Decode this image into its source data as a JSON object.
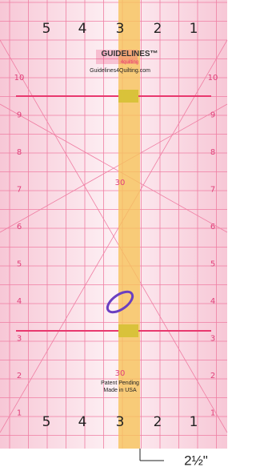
{
  "top_scale": [
    "5",
    "4",
    "3",
    "2",
    "1"
  ],
  "logo": {
    "brand": "GUIDELINES™",
    "sub": "4quilting",
    "url": "Guidelines4Quilting.com"
  },
  "side_scale_left": [
    "10",
    "9",
    "8",
    "7",
    "6",
    "5",
    "4",
    "3",
    "2",
    "1"
  ],
  "side_scale_right": [
    "10",
    "9",
    "8",
    "7",
    "6",
    "5",
    "4",
    "3",
    "2",
    "1"
  ],
  "angle_labels": [
    "30",
    "30"
  ],
  "notice": [
    "Patent Pending",
    "Made in USA"
  ],
  "bottom_scale": [
    "5",
    "4",
    "3",
    "2",
    "1"
  ],
  "dimension_label": "2½\""
}
